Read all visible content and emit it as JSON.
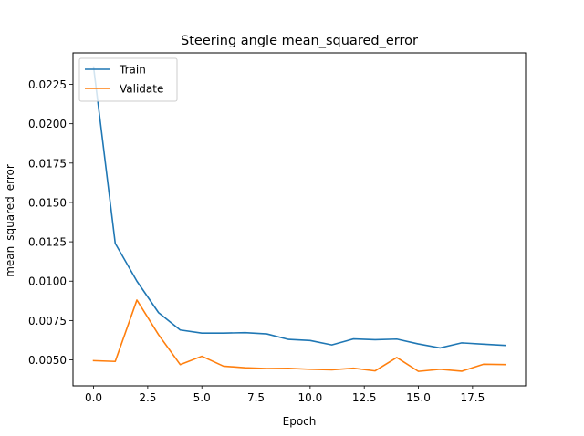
{
  "chart_data": {
    "type": "line",
    "title": "Steering angle mean_squared_error",
    "xlabel": "Epoch",
    "ylabel": "mean_squared_error",
    "xlim": [
      -0.95,
      19.95
    ],
    "ylim": [
      0.00335,
      0.0245
    ],
    "xticks": [
      0,
      2.5,
      5,
      7.5,
      10,
      12.5,
      15,
      17.5
    ],
    "xtick_labels": [
      "0.0",
      "2.5",
      "5.0",
      "7.5",
      "10.0",
      "12.5",
      "15.0",
      "17.5"
    ],
    "yticks": [
      0.005,
      0.0075,
      0.01,
      0.0125,
      0.015,
      0.0175,
      0.02,
      0.0225
    ],
    "ytick_labels": [
      "0.0050",
      "0.0075",
      "0.0100",
      "0.0125",
      "0.0150",
      "0.0175",
      "0.0200",
      "0.0225"
    ],
    "grid": false,
    "legend_position": "top-left",
    "x": [
      0,
      1,
      2,
      3,
      4,
      5,
      6,
      7,
      8,
      9,
      10,
      11,
      12,
      13,
      14,
      15,
      16,
      17,
      18,
      19
    ],
    "series": [
      {
        "name": "Train",
        "color": "#1f77b4",
        "values": [
          0.0236,
          0.0124,
          0.01,
          0.008,
          0.0069,
          0.0067,
          0.0067,
          0.00673,
          0.00665,
          0.0063,
          0.00623,
          0.00595,
          0.00633,
          0.00628,
          0.00632,
          0.00601,
          0.00576,
          0.00608,
          0.006,
          0.00592
        ]
      },
      {
        "name": "Validate",
        "color": "#ff7f0e",
        "values": [
          0.00495,
          0.0049,
          0.0088,
          0.0066,
          0.0047,
          0.00523,
          0.0046,
          0.0045,
          0.00445,
          0.00446,
          0.0044,
          0.00437,
          0.00447,
          0.0043,
          0.00515,
          0.00427,
          0.0044,
          0.00428,
          0.00472,
          0.0047
        ]
      }
    ]
  }
}
